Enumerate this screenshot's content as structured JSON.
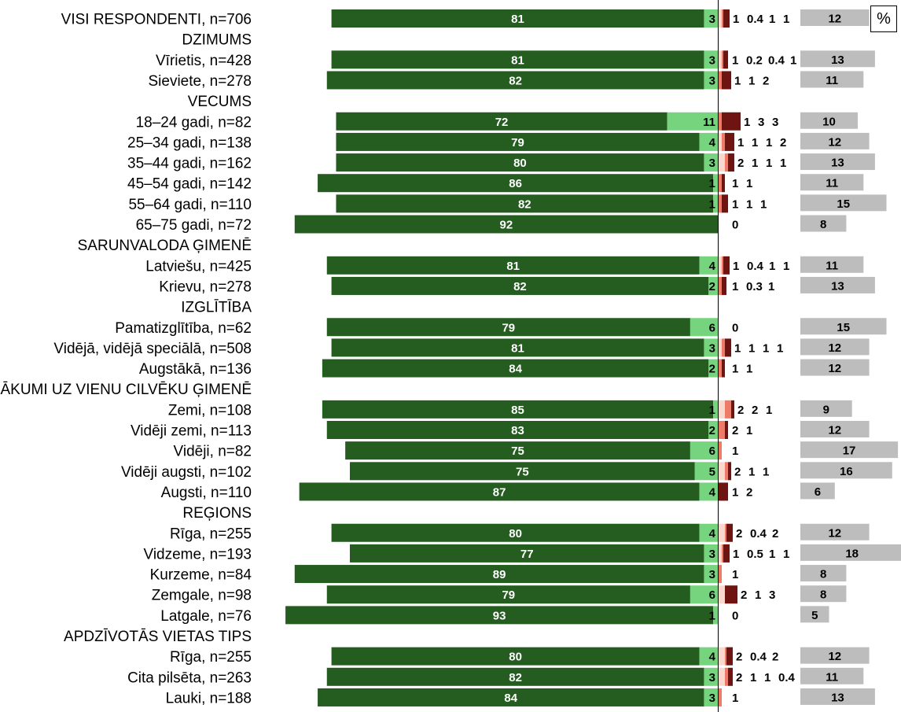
{
  "unit_label": "%",
  "chart_data": {
    "type": "bar",
    "stacked": "diverging",
    "colors": {
      "strong_positive": "#245d1f",
      "positive": "#76d47e",
      "neutral": "#f9d8cf",
      "negative": "#ee7a68",
      "strong_negative": "#6e1511",
      "no_answer": "#bdbdbd",
      "label_on_dark": "#ffffff",
      "label_on_light": "#000000"
    },
    "rows": [
      {
        "kind": "category",
        "label": "VISI RESPONDENTI, n=706",
        "values": [
          81,
          3,
          1,
          0.4,
          1,
          1,
          12
        ]
      },
      {
        "kind": "section",
        "label": "DZIMUMS"
      },
      {
        "kind": "category",
        "label": "Vīrietis, n=428",
        "values": [
          81,
          3,
          1,
          0.2,
          0.4,
          1,
          13
        ]
      },
      {
        "kind": "category",
        "label": "Sieviete, n=278",
        "values": [
          82,
          3,
          null,
          1,
          1,
          2,
          11
        ]
      },
      {
        "kind": "section",
        "label": "VECUMS"
      },
      {
        "kind": "category",
        "label": "18–24 gadi, n=82",
        "values": [
          72,
          11,
          null,
          1,
          3,
          3,
          10
        ]
      },
      {
        "kind": "category",
        "label": "25–34 gadi, n=138",
        "values": [
          79,
          4,
          1,
          1,
          1,
          2,
          12
        ]
      },
      {
        "kind": "category",
        "label": "35–44 gadi, n=162",
        "values": [
          80,
          3,
          2,
          1,
          1,
          1,
          13
        ]
      },
      {
        "kind": "category",
        "label": "45–54 gadi, n=142",
        "values": [
          86,
          1,
          null,
          1,
          1,
          null,
          11
        ]
      },
      {
        "kind": "category",
        "label": "55–64 gadi, n=110",
        "values": [
          82,
          1,
          null,
          1,
          1,
          1,
          15
        ]
      },
      {
        "kind": "category",
        "label": "65–75 gadi, n=72",
        "values": [
          92,
          null,
          null,
          0,
          null,
          null,
          8
        ]
      },
      {
        "kind": "section",
        "label": "SARUNVALODA ĢIMENĒ"
      },
      {
        "kind": "category",
        "label": "Latviešu, n=425",
        "values": [
          81,
          4,
          1,
          0.4,
          1,
          1,
          11
        ]
      },
      {
        "kind": "category",
        "label": "Krievu, n=278",
        "values": [
          82,
          2,
          null,
          1,
          0.3,
          1,
          13
        ]
      },
      {
        "kind": "section",
        "label": "IZGLĪTĪBA"
      },
      {
        "kind": "category",
        "label": "Pamatizglītība, n=62",
        "values": [
          79,
          6,
          null,
          0,
          null,
          null,
          15
        ]
      },
      {
        "kind": "category",
        "label": "Vidējā, vidējā speciālā, n=508",
        "values": [
          81,
          3,
          1,
          1,
          1,
          1,
          12
        ]
      },
      {
        "kind": "category",
        "label": "Augstākā, n=136",
        "values": [
          84,
          2,
          null,
          1,
          1,
          null,
          12
        ]
      },
      {
        "kind": "section",
        "label": "IENĀKUMI UZ VIENU CILVĒKU ĢIMENĒ"
      },
      {
        "kind": "category",
        "label": "Zemi, n=108",
        "values": [
          85,
          1,
          2,
          2,
          1,
          null,
          9
        ]
      },
      {
        "kind": "category",
        "label": "Vidēji zemi, n=113",
        "values": [
          83,
          2,
          null,
          2,
          1,
          null,
          12
        ]
      },
      {
        "kind": "category",
        "label": "Vidēji, n=82",
        "values": [
          75,
          6,
          null,
          1,
          null,
          null,
          17
        ]
      },
      {
        "kind": "category",
        "label": "Vidēji augsti, n=102",
        "values": [
          75,
          5,
          2,
          1,
          1,
          null,
          16
        ]
      },
      {
        "kind": "category",
        "label": "Augsti, n=110",
        "values": [
          87,
          4,
          null,
          null,
          1,
          2,
          6
        ]
      },
      {
        "kind": "section",
        "label": "REĢIONS"
      },
      {
        "kind": "category",
        "label": "Rīga, n=255",
        "values": [
          80,
          4,
          2,
          0.4,
          2,
          null,
          12
        ]
      },
      {
        "kind": "category",
        "label": "Vidzeme, n=193",
        "values": [
          77,
          3,
          1,
          0.5,
          1,
          1,
          18
        ]
      },
      {
        "kind": "category",
        "label": "Kurzeme, n=84",
        "values": [
          89,
          3,
          null,
          1,
          null,
          null,
          8
        ]
      },
      {
        "kind": "category",
        "label": "Zemgale, n=98",
        "values": [
          79,
          6,
          2,
          null,
          1,
          3,
          8
        ]
      },
      {
        "kind": "category",
        "label": "Latgale, n=76",
        "values": [
          93,
          1,
          null,
          0,
          null,
          null,
          5
        ]
      },
      {
        "kind": "section",
        "label": "APDZĪVOTĀS VIETAS TIPS"
      },
      {
        "kind": "category",
        "label": "Rīga, n=255",
        "values": [
          80,
          4,
          2,
          0.4,
          2,
          null,
          12
        ]
      },
      {
        "kind": "category",
        "label": "Cita pilsēta, n=263",
        "values": [
          82,
          3,
          2,
          1,
          1,
          0.4,
          11
        ]
      },
      {
        "kind": "category",
        "label": "Lauki, n=188",
        "values": [
          84,
          3,
          null,
          1,
          null,
          null,
          13
        ]
      }
    ]
  }
}
